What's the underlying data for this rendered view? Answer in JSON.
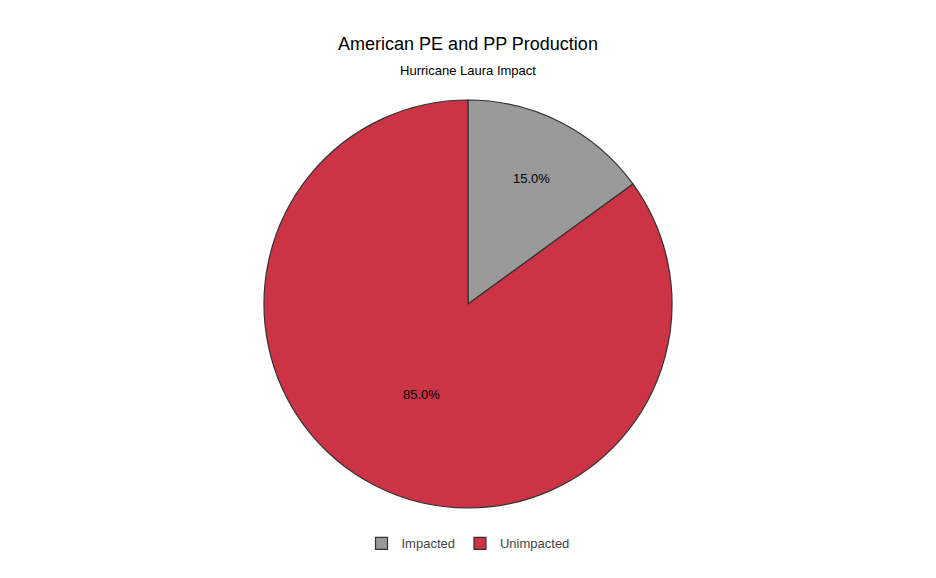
{
  "chart_data": {
    "type": "pie",
    "title": "American PE and PP Production",
    "subtitle": "Hurricane Laura Impact",
    "categories": [
      "Impacted",
      "Unimpacted"
    ],
    "values": [
      15.0,
      85.0
    ],
    "value_labels": [
      "15.0%",
      "85.0%"
    ],
    "colors": [
      "#999999",
      "#cc3344"
    ],
    "data_labels": true,
    "legend": "bottom"
  }
}
